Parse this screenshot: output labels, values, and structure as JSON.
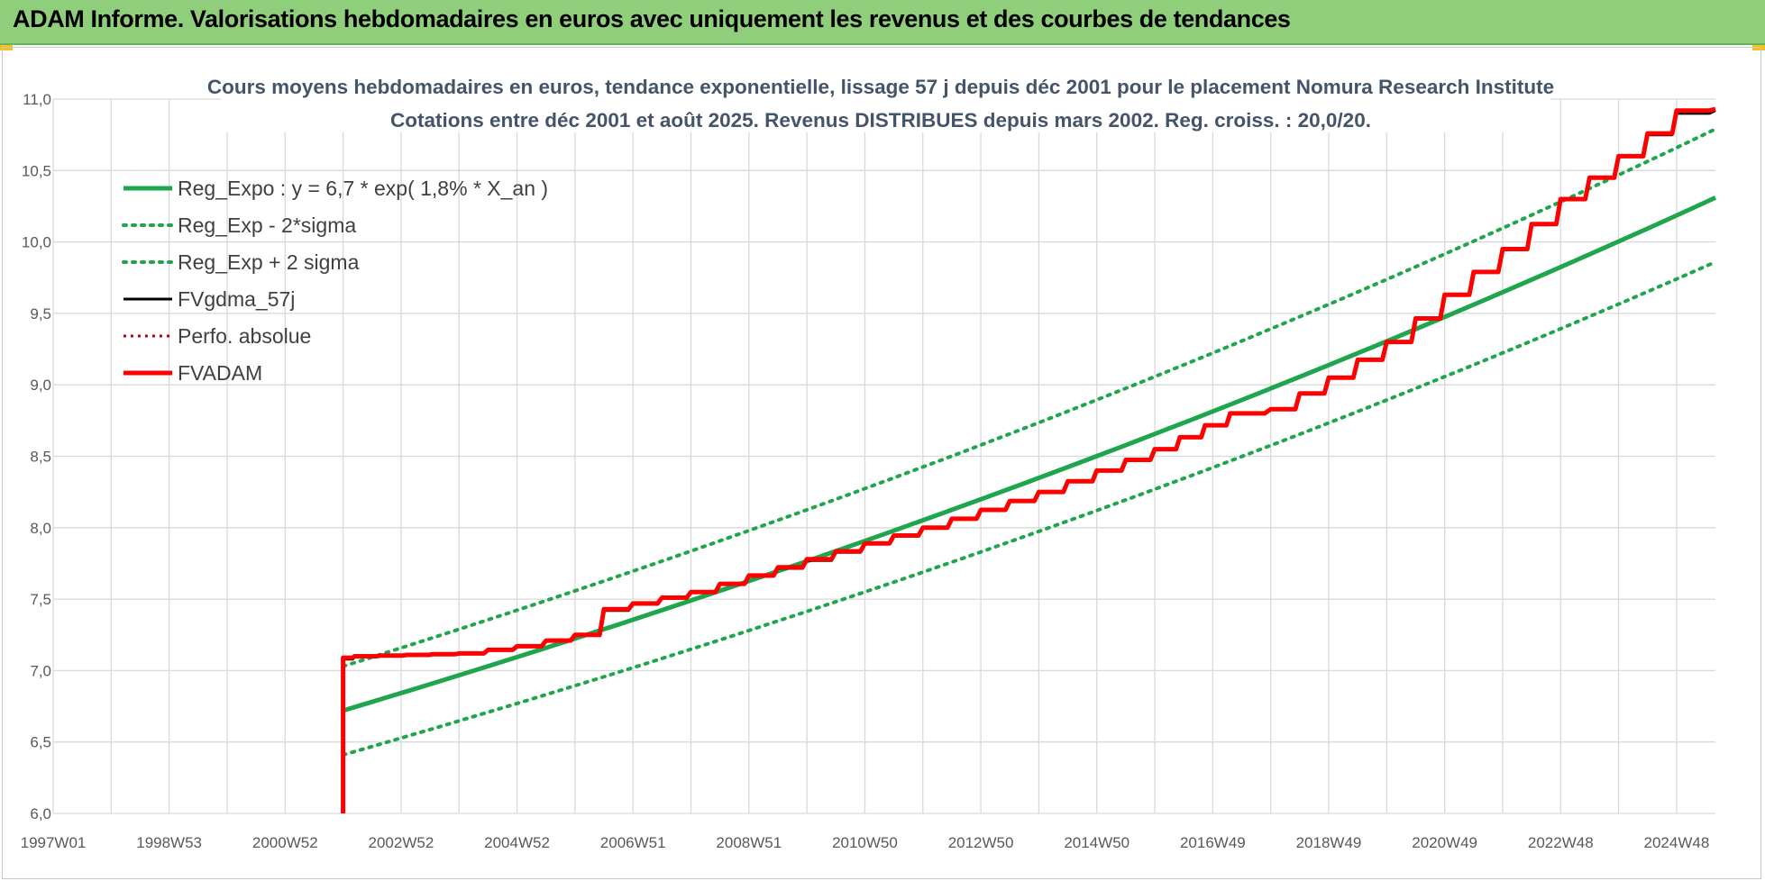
{
  "header": {
    "title": "ADAM Informe. Valorisations hebdomadaires en euros avec uniquement les revenus et des courbes de tendances"
  },
  "chart_data": {
    "type": "line",
    "title_line1": "Cours moyens hebdomadaires en euros, tendance exponentielle, lissage 57 j depuis déc 2001 pour le placement Nomura Research Institute",
    "title_line2": "Cotations entre déc 2001 et août 2025. Revenus DISTRIBUES depuis mars 2002. Reg. croiss. : 20,0/20.",
    "xlabel": "",
    "ylabel": "",
    "x_tick_labels": [
      "1997W01",
      "1998W53",
      "2000W52",
      "2002W52",
      "2004W52",
      "2006W51",
      "2008W51",
      "2010W50",
      "2012W50",
      "2014W50",
      "2016W49",
      "2018W49",
      "2020W49",
      "2022W48",
      "2024W48"
    ],
    "x_range": [
      1997.0,
      2025.67
    ],
    "ylim": [
      6.0,
      11.0
    ],
    "y_ticks": [
      "6,0",
      "6,5",
      "7,0",
      "7,5",
      "8,0",
      "8,5",
      "9,0",
      "9,5",
      "10,0",
      "10,5",
      "11,0"
    ],
    "grid": true,
    "legend_position": "top-left",
    "series": [
      {
        "name": "Reg_Expo : y = 6,7 * exp( 1,8% *  X_an )",
        "color": "#1fa64d",
        "style": "solid",
        "x": [
          2002.0,
          2025.67
        ],
        "values": [
          6.72,
          10.31
        ]
      },
      {
        "name": "Reg_Exp - 2*sigma",
        "color": "#1fa64d",
        "style": "dotted",
        "x": [
          2002.0,
          2025.67
        ],
        "values": [
          6.41,
          9.86
        ]
      },
      {
        "name": "Reg_Exp + 2 sigma",
        "color": "#1fa64d",
        "style": "dotted",
        "x": [
          2002.0,
          2025.67
        ],
        "values": [
          7.03,
          10.79
        ]
      },
      {
        "name": "FVgdma_57j",
        "color": "#000000",
        "style": "solid",
        "x": [
          2002.0,
          2002.2,
          2004.0,
          2005.0,
          2006.0,
          2006.5,
          2008.0,
          2010.0,
          2012.0,
          2014.0,
          2016.0,
          2017.3,
          2018.0,
          2019.0,
          2020.0,
          2021.0,
          2022.0,
          2023.0,
          2024.0,
          2025.0,
          2025.67
        ],
        "values": [
          7.08,
          7.1,
          7.12,
          7.17,
          7.25,
          7.42,
          7.55,
          7.77,
          8.0,
          8.25,
          8.55,
          8.8,
          8.83,
          9.05,
          9.3,
          9.63,
          9.95,
          10.3,
          10.6,
          10.9,
          10.92
        ]
      },
      {
        "name": "Perfo. absolue",
        "color": "#c00000",
        "style": "dotted",
        "x": [],
        "values": []
      },
      {
        "name": "FVADAM",
        "color": "#ff0000",
        "style": "solid",
        "x": [
          2002.0,
          2002.0,
          2002.2,
          2004.0,
          2005.0,
          2006.0,
          2006.5,
          2008.0,
          2010.0,
          2012.0,
          2014.0,
          2016.0,
          2017.3,
          2018.0,
          2019.0,
          2020.0,
          2021.0,
          2022.0,
          2023.0,
          2024.0,
          2025.0,
          2025.67
        ],
        "values": [
          6.0,
          7.09,
          7.1,
          7.12,
          7.17,
          7.25,
          7.43,
          7.55,
          7.78,
          8.0,
          8.25,
          8.55,
          8.8,
          8.83,
          9.05,
          9.3,
          9.63,
          9.95,
          10.3,
          10.6,
          10.92,
          10.93
        ]
      }
    ]
  }
}
